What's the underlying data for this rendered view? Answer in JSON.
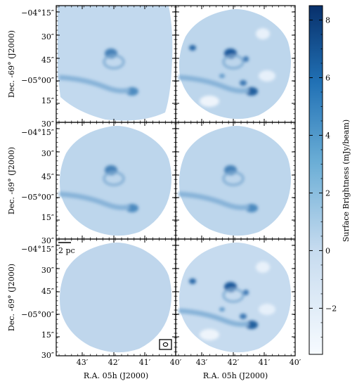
{
  "axes": {
    "dec_ticks": [
      "−04°15″",
      "30″",
      "45″",
      "−05°00″",
      "15″",
      "30″"
    ],
    "ra_ticks": [
      "43′",
      "42′",
      "41′",
      "40′"
    ],
    "ylabel": "Dec. -69° (J2000)",
    "xlabel": "R.A. 05h (J2000)"
  },
  "colorbar": {
    "label": "Surface Brightness (mJy/beam)",
    "ticks": [
      {
        "value": 8,
        "label": "8"
      },
      {
        "value": 6,
        "label": "6"
      },
      {
        "value": 4,
        "label": "4"
      },
      {
        "value": 2,
        "label": "2"
      },
      {
        "value": 0,
        "label": "0"
      },
      {
        "value": -2,
        "label": "−2"
      }
    ],
    "range": [
      -3.6,
      8.5
    ],
    "colors": [
      "#f7fbff",
      "#c6dbef",
      "#6baed6",
      "#2171b5",
      "#08306b"
    ]
  },
  "scalebar": {
    "label": "2 pc"
  },
  "panels": [
    {
      "id": "top-left",
      "row": 0,
      "col": 0,
      "ramp": "#c2d9ee",
      "variant": "cut"
    },
    {
      "id": "top-right",
      "row": 0,
      "col": 1,
      "ramp": "#bdd6ec",
      "variant": "full"
    },
    {
      "id": "middle-left",
      "row": 1,
      "col": 0,
      "ramp": "#bdd6ec",
      "variant": "smooth"
    },
    {
      "id": "middle-right",
      "row": 1,
      "col": 1,
      "ramp": "#bdd6ec",
      "variant": "smooth"
    },
    {
      "id": "bottom-left",
      "row": 2,
      "col": 0,
      "ramp": "#bfd6ec",
      "variant": "flat"
    },
    {
      "id": "bottom-right",
      "row": 2,
      "col": 1,
      "ramp": "#c6dbef",
      "variant": "full"
    }
  ]
}
